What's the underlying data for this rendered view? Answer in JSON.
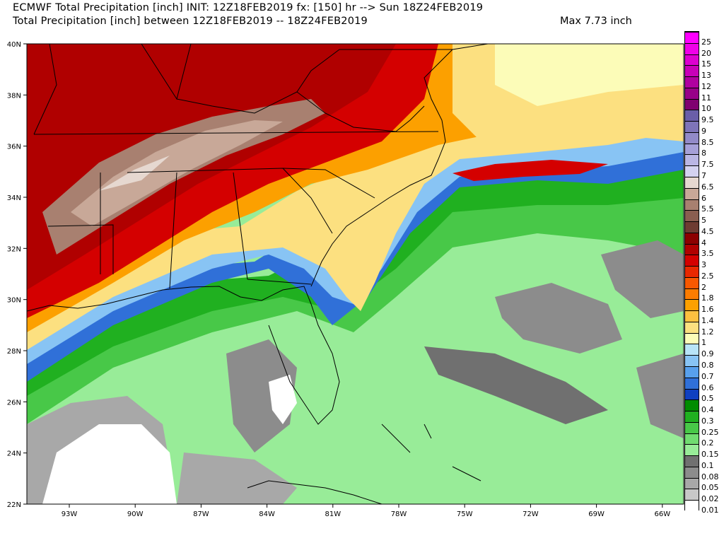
{
  "header": {
    "line1": "ECMWF Total Precipitation [inch] INIT: 12Z18FEB2019 fx: [150] hr --> Sun 18Z24FEB2019",
    "line2": "Total Precipitation [inch] between 12Z18FEB2019 -- 18Z24FEB2019",
    "max_label": "Max 7.73 inch"
  },
  "map": {
    "lat_labels": [
      "40N",
      "38N",
      "36N",
      "34N",
      "32N",
      "30N",
      "28N",
      "26N",
      "24N",
      "22N"
    ],
    "lon_labels": [
      "93W",
      "90W",
      "87W",
      "84W",
      "81W",
      "78W",
      "75W",
      "72W",
      "69W",
      "66W"
    ]
  },
  "legend": {
    "levels": [
      {
        "label": "25",
        "color": "#ff00ff"
      },
      {
        "label": "20",
        "color": "#f000e8"
      },
      {
        "label": "15",
        "color": "#dd00d0"
      },
      {
        "label": "13",
        "color": "#c800b8"
      },
      {
        "label": "12",
        "color": "#b000a0"
      },
      {
        "label": "11",
        "color": "#980088"
      },
      {
        "label": "10",
        "color": "#800070"
      },
      {
        "label": "9.5",
        "color": "#6a5ea8"
      },
      {
        "label": "9",
        "color": "#7e74b8"
      },
      {
        "label": "8.5",
        "color": "#928ac8"
      },
      {
        "label": "8",
        "color": "#a6a0d8"
      },
      {
        "label": "7.5",
        "color": "#bab6e4"
      },
      {
        "label": "7",
        "color": "#d4d2f0"
      },
      {
        "label": "6.5",
        "color": "#e6d8d0"
      },
      {
        "label": "6",
        "color": "#c8a898"
      },
      {
        "label": "5.5",
        "color": "#a88070"
      },
      {
        "label": "5",
        "color": "#8a5e50"
      },
      {
        "label": "4.5",
        "color": "#6e3c32"
      },
      {
        "label": "4",
        "color": "#8c0000"
      },
      {
        "label": "3.5",
        "color": "#b00000"
      },
      {
        "label": "3",
        "color": "#d40000"
      },
      {
        "label": "2.5",
        "color": "#e82800"
      },
      {
        "label": "2",
        "color": "#f85800"
      },
      {
        "label": "1.8",
        "color": "#fc7c00"
      },
      {
        "label": "1.6",
        "color": "#fca000"
      },
      {
        "label": "1.4",
        "color": "#fcc040"
      },
      {
        "label": "1.2",
        "color": "#fce080"
      },
      {
        "label": "1",
        "color": "#fcfcb8"
      },
      {
        "label": "0.9",
        "color": "#b8e4f8"
      },
      {
        "label": "0.8",
        "color": "#88c4f4"
      },
      {
        "label": "0.7",
        "color": "#58a0ec"
      },
      {
        "label": "0.6",
        "color": "#3070d8"
      },
      {
        "label": "0.5",
        "color": "#1040c0"
      },
      {
        "label": "0.4",
        "color": "#008c00"
      },
      {
        "label": "0.3",
        "color": "#20b020"
      },
      {
        "label": "0.25",
        "color": "#48c848"
      },
      {
        "label": "0.2",
        "color": "#70dc70"
      },
      {
        "label": "0.15",
        "color": "#98ec98"
      },
      {
        "label": "0.1",
        "color": "#707070"
      },
      {
        "label": "0.08",
        "color": "#8c8c8c"
      },
      {
        "label": "0.05",
        "color": "#a8a8a8"
      },
      {
        "label": "0.02",
        "color": "#c8c8c8"
      },
      {
        "label": "0.01",
        "color": "#ffffff"
      }
    ]
  }
}
